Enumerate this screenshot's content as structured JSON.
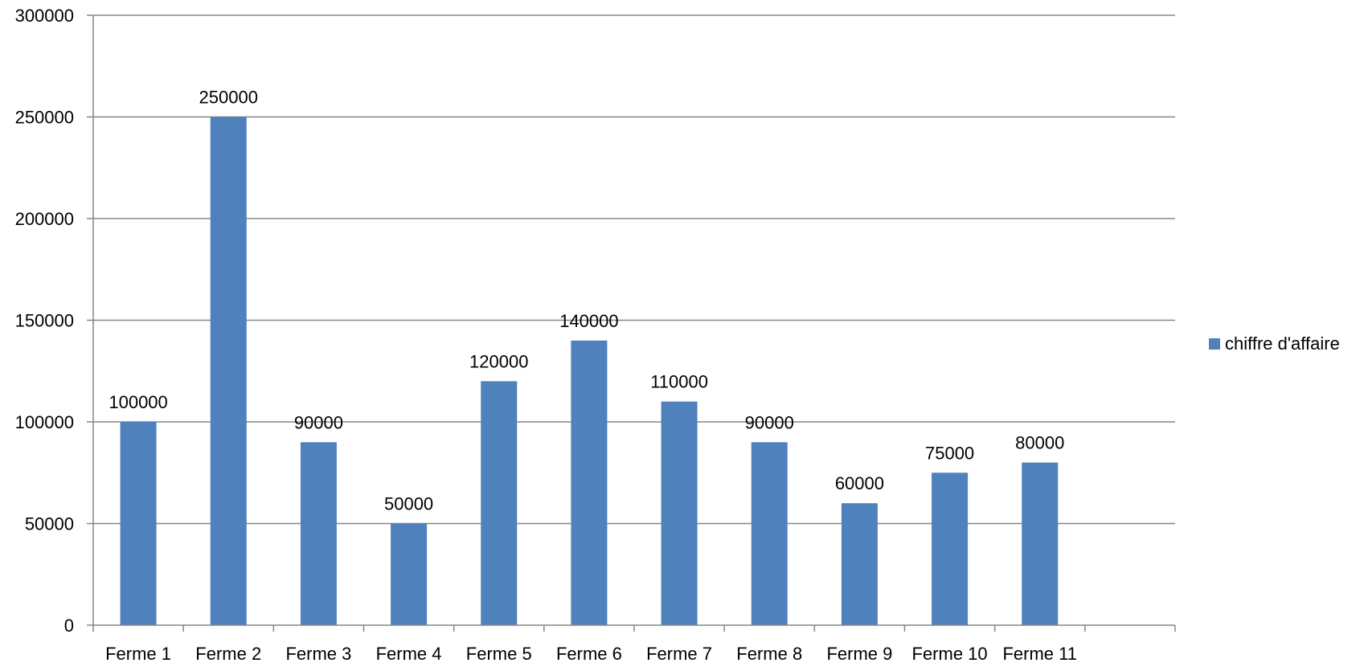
{
  "chart_data": {
    "type": "bar",
    "categories": [
      "Ferme 1",
      "Ferme 2",
      "Ferme 3",
      "Ferme 4",
      "Ferme 5",
      "Ferme 6",
      "Ferme 7",
      "Ferme 8",
      "Ferme 9",
      "Ferme 10",
      "Ferme 11",
      ""
    ],
    "series": [
      {
        "name": "chiffre d'affaire",
        "values": [
          100000,
          250000,
          90000,
          50000,
          120000,
          140000,
          110000,
          90000,
          60000,
          75000,
          80000,
          null
        ],
        "color": "#4f81bd"
      }
    ],
    "title": "",
    "xlabel": "",
    "ylabel": "",
    "ylim": [
      0,
      300000
    ],
    "yticks": [
      0,
      50000,
      100000,
      150000,
      200000,
      250000,
      300000
    ],
    "grid": true,
    "data_labels": true,
    "legend_position": "right"
  }
}
